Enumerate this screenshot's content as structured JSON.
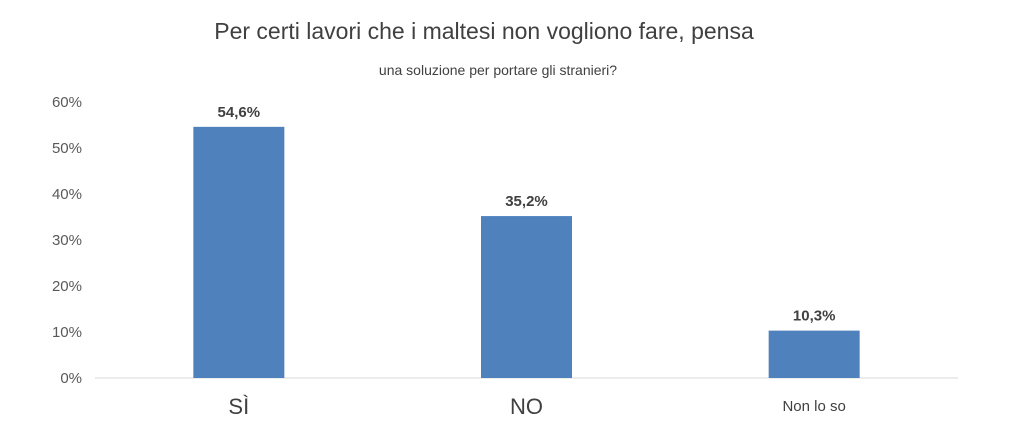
{
  "chart_data": {
    "type": "bar",
    "title": "Per certi lavori che i maltesi non vogliono fare, pensa",
    "subtitle": "una soluzione per portare gli stranieri?",
    "categories": [
      "SÌ",
      "NO",
      "Non lo so"
    ],
    "values": [
      54.6,
      35.2,
      10.3
    ],
    "data_labels": [
      "54,6%",
      "35,2%",
      "10,3%"
    ],
    "ylim": [
      0,
      60
    ],
    "y_ticks": [
      0,
      10,
      20,
      30,
      40,
      50,
      60
    ],
    "y_tick_labels": [
      "0%",
      "10%",
      "20%",
      "30%",
      "40%",
      "50%",
      "60%"
    ],
    "xlabel": "",
    "ylabel": "",
    "grid": false,
    "legend": "none",
    "bar_color": "#4F81BD"
  }
}
